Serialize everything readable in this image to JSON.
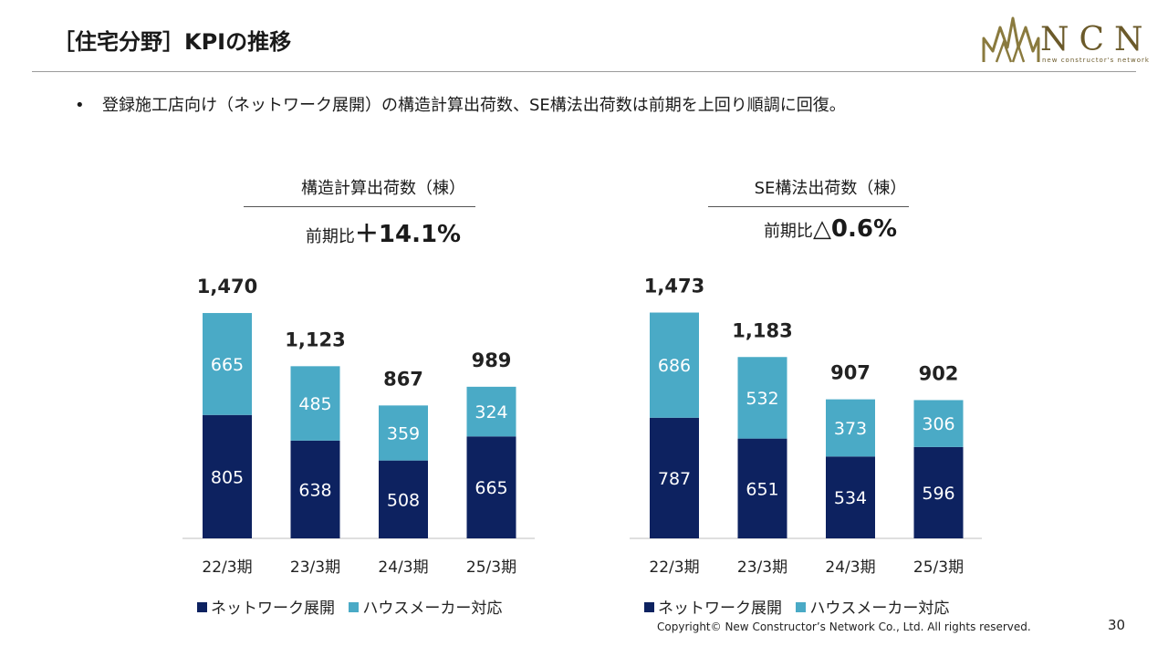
{
  "title": "［住宅分野］KPIの推移",
  "logo": {
    "letters": "NCN",
    "tagline": "new constructor's network"
  },
  "bullet": "登録施工店向け（ネットワーク展開）の構造計算出荷数、SE構法出荷数は前期を上回り順調に回復。",
  "colors": {
    "network": "#0d2260",
    "housemaker": "#4aaac6",
    "gold": "#8a7a3e"
  },
  "chart_data": [
    {
      "type": "bar",
      "stacked": true,
      "title": "構造計算出荷数（棟）",
      "ratio_label": "前期比",
      "ratio_value": "＋14.1%",
      "categories": [
        "22/3期",
        "23/3期",
        "24/3期",
        "25/3期"
      ],
      "series": [
        {
          "name": "ネットワーク展開",
          "values": [
            805,
            638,
            508,
            665
          ]
        },
        {
          "name": "ハウスメーカー対応",
          "values": [
            665,
            485,
            359,
            324
          ]
        }
      ],
      "totals": [
        "1,470",
        "1,123",
        "867",
        "989"
      ],
      "ylim": [
        0,
        1500
      ],
      "grid": false,
      "legend": "bottom"
    },
    {
      "type": "bar",
      "stacked": true,
      "title": "SE構法出荷数（棟）",
      "ratio_label": "前期比",
      "ratio_value": "△0.6%",
      "categories": [
        "22/3期",
        "23/3期",
        "24/3期",
        "25/3期"
      ],
      "series": [
        {
          "name": "ネットワーク展開",
          "values": [
            787,
            651,
            534,
            596
          ]
        },
        {
          "name": "ハウスメーカー対応",
          "values": [
            686,
            532,
            373,
            306
          ]
        }
      ],
      "totals": [
        "1,473",
        "1,183",
        "907",
        "902"
      ],
      "ylim": [
        0,
        1500
      ],
      "grid": false,
      "legend": "bottom"
    }
  ],
  "footer": {
    "copyright": "Copyright© New Constructor’s Network Co., Ltd. All rights reserved.",
    "page": "30"
  }
}
